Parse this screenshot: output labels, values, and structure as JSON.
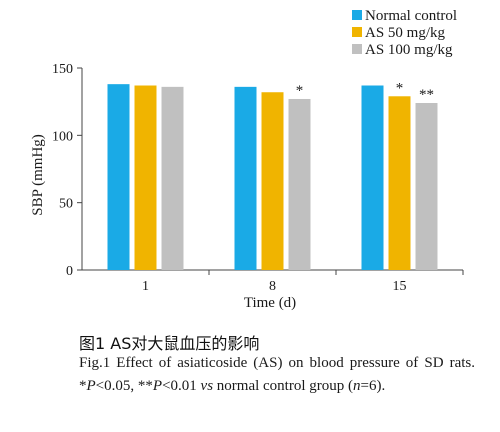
{
  "chart_data": {
    "type": "bar",
    "title": "",
    "xlabel": "Time (d)",
    "ylabel": "SBP (mmHg)",
    "ylim": [
      0,
      150
    ],
    "yticks": [
      0,
      50,
      100,
      150
    ],
    "categories": [
      "1",
      "8",
      "15"
    ],
    "series": [
      {
        "name": "Normal control",
        "color": "#1aaae6",
        "values": [
          138,
          136,
          137
        ],
        "sig": [
          "",
          "",
          ""
        ]
      },
      {
        "name": "AS 50 mg/kg",
        "color": "#f0b400",
        "values": [
          137,
          132,
          129
        ],
        "sig": [
          "",
          "",
          "*"
        ]
      },
      {
        "name": "AS 100 mg/kg",
        "color": "#c0c0c0",
        "values": [
          136,
          127,
          124
        ],
        "sig": [
          "",
          "*",
          "**"
        ]
      }
    ],
    "legend_position": "top-right",
    "grid": false
  },
  "caption": {
    "chinese": "图1 AS对大鼠血压的影响",
    "english": {
      "prefix": "Fig.1  Effect of asiaticoside (AS) on blood pressure of SD rats. *",
      "p1": "P",
      "mid1": "<0.05, **",
      "p2": "P",
      "mid2": "<0.01 ",
      "vs": "vs",
      "mid3": " normal control group (",
      "n": "n",
      "suffix": "=6)."
    }
  }
}
